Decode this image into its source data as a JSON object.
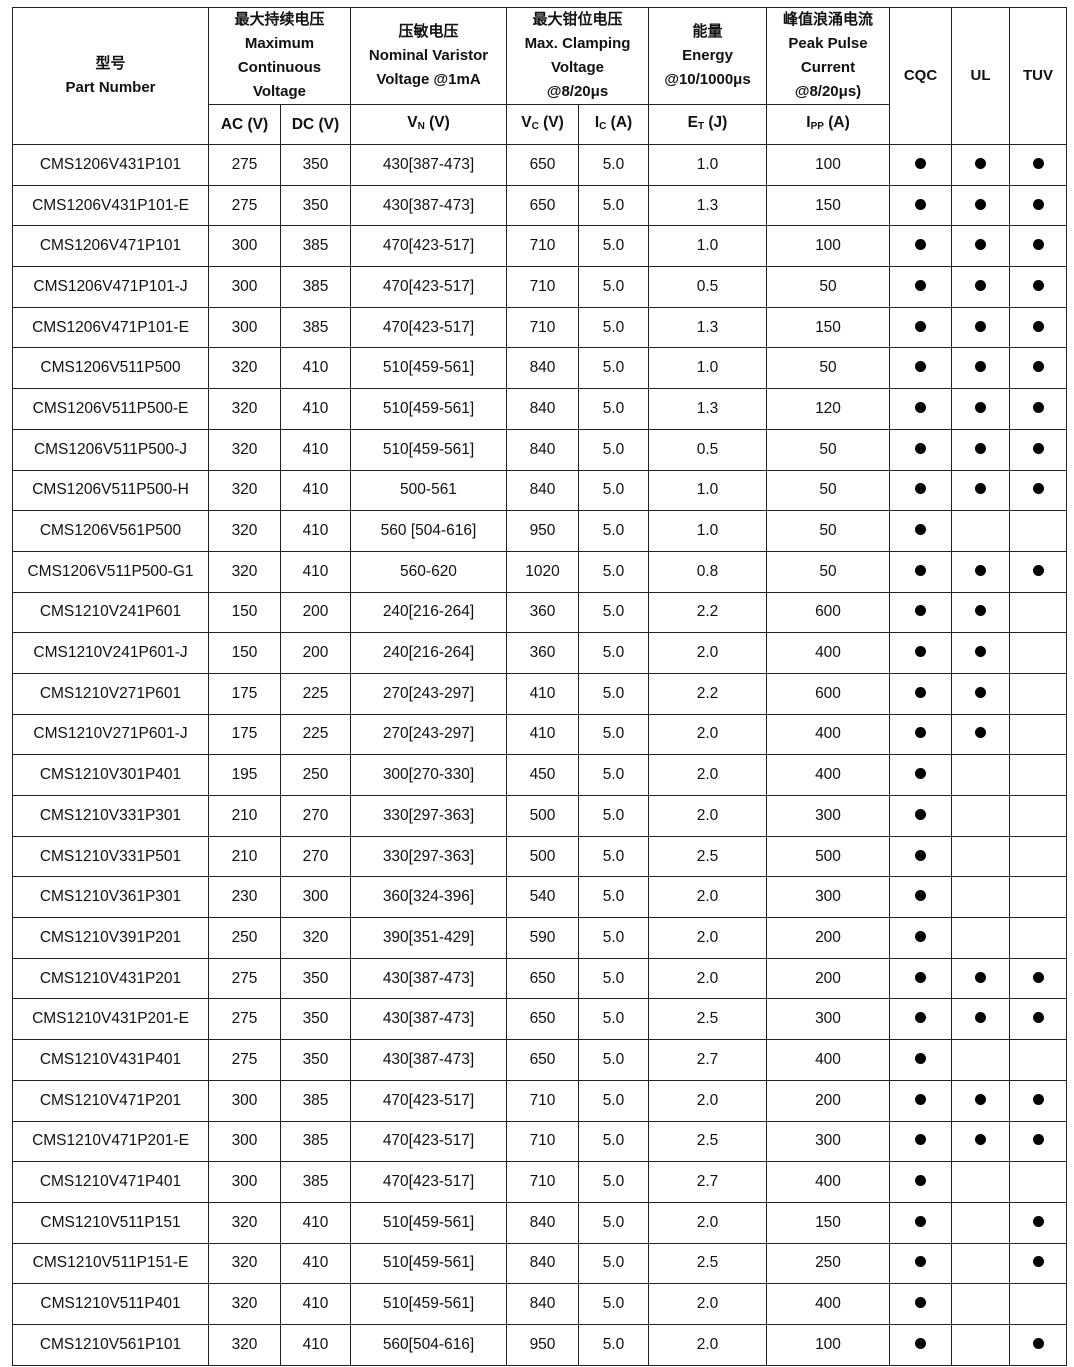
{
  "header": {
    "part": {
      "cn": "型号",
      "en": "Part Number"
    },
    "mcv": {
      "cn": "最大持续电压",
      "en1": "Maximum",
      "en2": "Continuous",
      "en3": "Voltage"
    },
    "nvv": {
      "cn": "压敏电压",
      "en1": "Nominal Varistor",
      "en2": "Voltage @1mA"
    },
    "clamp": {
      "cn": "最大钳位电压",
      "en1": "Max. Clamping",
      "en2": "Voltage",
      "en3": "@8/20μs"
    },
    "energy": {
      "cn": "能量",
      "en1": "Energy",
      "en2": "@10/1000μs"
    },
    "peak": {
      "cn": "峰值浪涌电流",
      "en1": "Peak Pulse",
      "en2": "Current",
      "en3": "@8/20μs)"
    },
    "cqc": "CQC",
    "ul": "UL",
    "tuv": "TUV",
    "sub": {
      "ac": "AC (V)",
      "dc": "DC (V)",
      "vn": "V",
      "vn_sub": "N",
      "vn_unit": " (V)",
      "vc": "V",
      "vc_sub": "C",
      "vc_unit": " (V)",
      "ic": "I",
      "ic_sub": "C",
      "ic_unit": " (A)",
      "et": "E",
      "et_sub": "T",
      "et_unit": " (J)",
      "ipp": "I",
      "ipp_sub": "PP",
      "ipp_unit": " (A)"
    }
  },
  "rows": [
    [
      "CMS1206V431P101",
      "275",
      "350",
      "430[387-473]",
      "650",
      "5.0",
      "1.0",
      "100",
      1,
      1,
      1
    ],
    [
      "CMS1206V431P101-E",
      "275",
      "350",
      "430[387-473]",
      "650",
      "5.0",
      "1.3",
      "150",
      1,
      1,
      1
    ],
    [
      "CMS1206V471P101",
      "300",
      "385",
      "470[423-517]",
      "710",
      "5.0",
      "1.0",
      "100",
      1,
      1,
      1
    ],
    [
      "CMS1206V471P101-J",
      "300",
      "385",
      "470[423-517]",
      "710",
      "5.0",
      "0.5",
      "50",
      1,
      1,
      1
    ],
    [
      "CMS1206V471P101-E",
      "300",
      "385",
      "470[423-517]",
      "710",
      "5.0",
      "1.3",
      "150",
      1,
      1,
      1
    ],
    [
      "CMS1206V511P500",
      "320",
      "410",
      "510[459-561]",
      "840",
      "5.0",
      "1.0",
      "50",
      1,
      1,
      1
    ],
    [
      "CMS1206V511P500-E",
      "320",
      "410",
      "510[459-561]",
      "840",
      "5.0",
      "1.3",
      "120",
      1,
      1,
      1
    ],
    [
      "CMS1206V511P500-J",
      "320",
      "410",
      "510[459-561]",
      "840",
      "5.0",
      "0.5",
      "50",
      1,
      1,
      1
    ],
    [
      "CMS1206V511P500-H",
      "320",
      "410",
      "500-561",
      "840",
      "5.0",
      "1.0",
      "50",
      1,
      1,
      1
    ],
    [
      "CMS1206V561P500",
      "320",
      "410",
      "560 [504-616]",
      "950",
      "5.0",
      "1.0",
      "50",
      1,
      0,
      0
    ],
    [
      "CMS1206V511P500-G1",
      "320",
      "410",
      "560-620",
      "1020",
      "5.0",
      "0.8",
      "50",
      1,
      1,
      1
    ],
    [
      "CMS1210V241P601",
      "150",
      "200",
      "240[216-264]",
      "360",
      "5.0",
      "2.2",
      "600",
      1,
      1,
      0
    ],
    [
      "CMS1210V241P601-J",
      "150",
      "200",
      "240[216-264]",
      "360",
      "5.0",
      "2.0",
      "400",
      1,
      1,
      0
    ],
    [
      "CMS1210V271P601",
      "175",
      "225",
      "270[243-297]",
      "410",
      "5.0",
      "2.2",
      "600",
      1,
      1,
      0
    ],
    [
      "CMS1210V271P601-J",
      "175",
      "225",
      "270[243-297]",
      "410",
      "5.0",
      "2.0",
      "400",
      1,
      1,
      0
    ],
    [
      "CMS1210V301P401",
      "195",
      "250",
      "300[270-330]",
      "450",
      "5.0",
      "2.0",
      "400",
      1,
      0,
      0
    ],
    [
      "CMS1210V331P301",
      "210",
      "270",
      "330[297-363]",
      "500",
      "5.0",
      "2.0",
      "300",
      1,
      0,
      0
    ],
    [
      "CMS1210V331P501",
      "210",
      "270",
      "330[297-363]",
      "500",
      "5.0",
      "2.5",
      "500",
      1,
      0,
      0
    ],
    [
      "CMS1210V361P301",
      "230",
      "300",
      "360[324-396]",
      "540",
      "5.0",
      "2.0",
      "300",
      1,
      0,
      0
    ],
    [
      "CMS1210V391P201",
      "250",
      "320",
      "390[351-429]",
      "590",
      "5.0",
      "2.0",
      "200",
      1,
      0,
      0
    ],
    [
      "CMS1210V431P201",
      "275",
      "350",
      "430[387-473]",
      "650",
      "5.0",
      "2.0",
      "200",
      1,
      1,
      1
    ],
    [
      "CMS1210V431P201-E",
      "275",
      "350",
      "430[387-473]",
      "650",
      "5.0",
      "2.5",
      "300",
      1,
      1,
      1
    ],
    [
      "CMS1210V431P401",
      "275",
      "350",
      "430[387-473]",
      "650",
      "5.0",
      "2.7",
      "400",
      1,
      0,
      0
    ],
    [
      "CMS1210V471P201",
      "300",
      "385",
      "470[423-517]",
      "710",
      "5.0",
      "2.0",
      "200",
      1,
      1,
      1
    ],
    [
      "CMS1210V471P201-E",
      "300",
      "385",
      "470[423-517]",
      "710",
      "5.0",
      "2.5",
      "300",
      1,
      1,
      1
    ],
    [
      "CMS1210V471P401",
      "300",
      "385",
      "470[423-517]",
      "710",
      "5.0",
      "2.7",
      "400",
      1,
      0,
      0
    ],
    [
      "CMS1210V511P151",
      "320",
      "410",
      "510[459-561]",
      "840",
      "5.0",
      "2.0",
      "150",
      1,
      0,
      1
    ],
    [
      "CMS1210V511P151-E",
      "320",
      "410",
      "510[459-561]",
      "840",
      "5.0",
      "2.5",
      "250",
      1,
      0,
      1
    ],
    [
      "CMS1210V511P401",
      "320",
      "410",
      "510[459-561]",
      "840",
      "5.0",
      "2.0",
      "400",
      1,
      0,
      0
    ],
    [
      "CMS1210V561P101",
      "320",
      "410",
      "560[504-616]",
      "950",
      "5.0",
      "2.0",
      "100",
      1,
      0,
      1
    ]
  ]
}
